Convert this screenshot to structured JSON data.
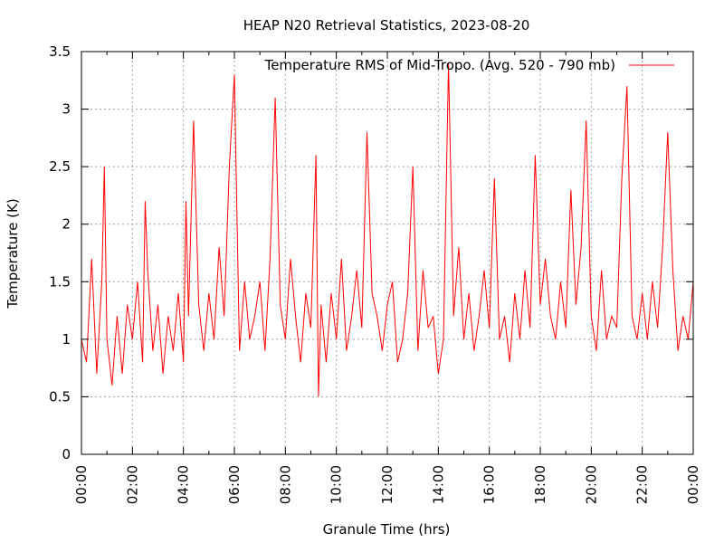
{
  "chart_data": {
    "type": "line",
    "title": "HEAP N20 Retrieval Statistics, 2023-08-20",
    "xlabel": "Granule Time (hrs)",
    "ylabel": "Temperature (K)",
    "xlim": [
      0,
      24
    ],
    "ylim": [
      0,
      3.5
    ],
    "grid": true,
    "legend_position": "top-right",
    "x_ticks": [
      "00:00",
      "02:00",
      "04:00",
      "06:00",
      "08:00",
      "10:00",
      "12:00",
      "14:00",
      "16:00",
      "18:00",
      "20:00",
      "22:00",
      "00:00"
    ],
    "y_ticks": [
      "0",
      "0.5",
      "1",
      "1.5",
      "2",
      "2.5",
      "3",
      "3.5"
    ],
    "series": [
      {
        "name": "Temperature RMS of Mid-Tropo. (Avg. 520 - 790 mb)",
        "color": "#ff0000",
        "x": [
          0.0,
          0.2,
          0.4,
          0.6,
          0.8,
          0.9,
          1.0,
          1.2,
          1.4,
          1.6,
          1.8,
          2.0,
          2.2,
          2.4,
          2.5,
          2.6,
          2.8,
          3.0,
          3.2,
          3.4,
          3.6,
          3.8,
          4.0,
          4.1,
          4.2,
          4.4,
          4.6,
          4.8,
          5.0,
          5.2,
          5.4,
          5.6,
          5.8,
          6.0,
          6.2,
          6.4,
          6.6,
          6.8,
          7.0,
          7.2,
          7.4,
          7.6,
          7.8,
          8.0,
          8.2,
          8.4,
          8.6,
          8.8,
          9.0,
          9.2,
          9.3,
          9.4,
          9.6,
          9.8,
          10.0,
          10.2,
          10.4,
          10.6,
          10.8,
          11.0,
          11.2,
          11.4,
          11.6,
          11.8,
          12.0,
          12.2,
          12.4,
          12.6,
          12.8,
          13.0,
          13.2,
          13.4,
          13.6,
          13.8,
          14.0,
          14.2,
          14.4,
          14.6,
          14.8,
          15.0,
          15.2,
          15.4,
          15.6,
          15.8,
          16.0,
          16.2,
          16.4,
          16.6,
          16.8,
          17.0,
          17.2,
          17.4,
          17.6,
          17.8,
          18.0,
          18.2,
          18.4,
          18.6,
          18.8,
          19.0,
          19.2,
          19.4,
          19.6,
          19.8,
          20.0,
          20.2,
          20.4,
          20.6,
          20.8,
          21.0,
          21.2,
          21.4,
          21.6,
          21.8,
          22.0,
          22.2,
          22.4,
          22.6,
          22.8,
          23.0,
          23.2,
          23.4,
          23.6,
          23.8,
          24.0
        ],
        "y": [
          1.0,
          0.8,
          1.7,
          0.7,
          1.5,
          2.5,
          1.0,
          0.6,
          1.2,
          0.7,
          1.3,
          1.0,
          1.5,
          0.8,
          2.2,
          1.6,
          0.9,
          1.3,
          0.7,
          1.2,
          0.9,
          1.4,
          0.8,
          2.2,
          1.2,
          2.9,
          1.3,
          0.9,
          1.4,
          1.0,
          1.8,
          1.2,
          2.5,
          3.3,
          0.9,
          1.5,
          1.0,
          1.2,
          1.5,
          0.9,
          1.7,
          3.1,
          1.3,
          1.0,
          1.7,
          1.2,
          0.8,
          1.4,
          1.1,
          2.6,
          0.5,
          1.3,
          0.8,
          1.4,
          1.0,
          1.7,
          0.9,
          1.2,
          1.6,
          1.1,
          2.8,
          1.4,
          1.2,
          0.9,
          1.3,
          1.5,
          0.8,
          1.0,
          1.4,
          2.5,
          0.9,
          1.6,
          1.1,
          1.2,
          0.7,
          1.0,
          3.4,
          1.2,
          1.8,
          1.0,
          1.4,
          0.9,
          1.2,
          1.6,
          1.1,
          2.4,
          1.0,
          1.2,
          0.8,
          1.4,
          1.0,
          1.6,
          1.1,
          2.6,
          1.3,
          1.7,
          1.2,
          1.0,
          1.5,
          1.1,
          2.3,
          1.3,
          1.8,
          2.9,
          1.2,
          0.9,
          1.6,
          1.0,
          1.2,
          1.1,
          2.4,
          3.2,
          1.2,
          1.0,
          1.4,
          1.0,
          1.5,
          1.1,
          1.8,
          2.8,
          1.6,
          0.9,
          1.2,
          1.0,
          1.5
        ]
      }
    ]
  }
}
